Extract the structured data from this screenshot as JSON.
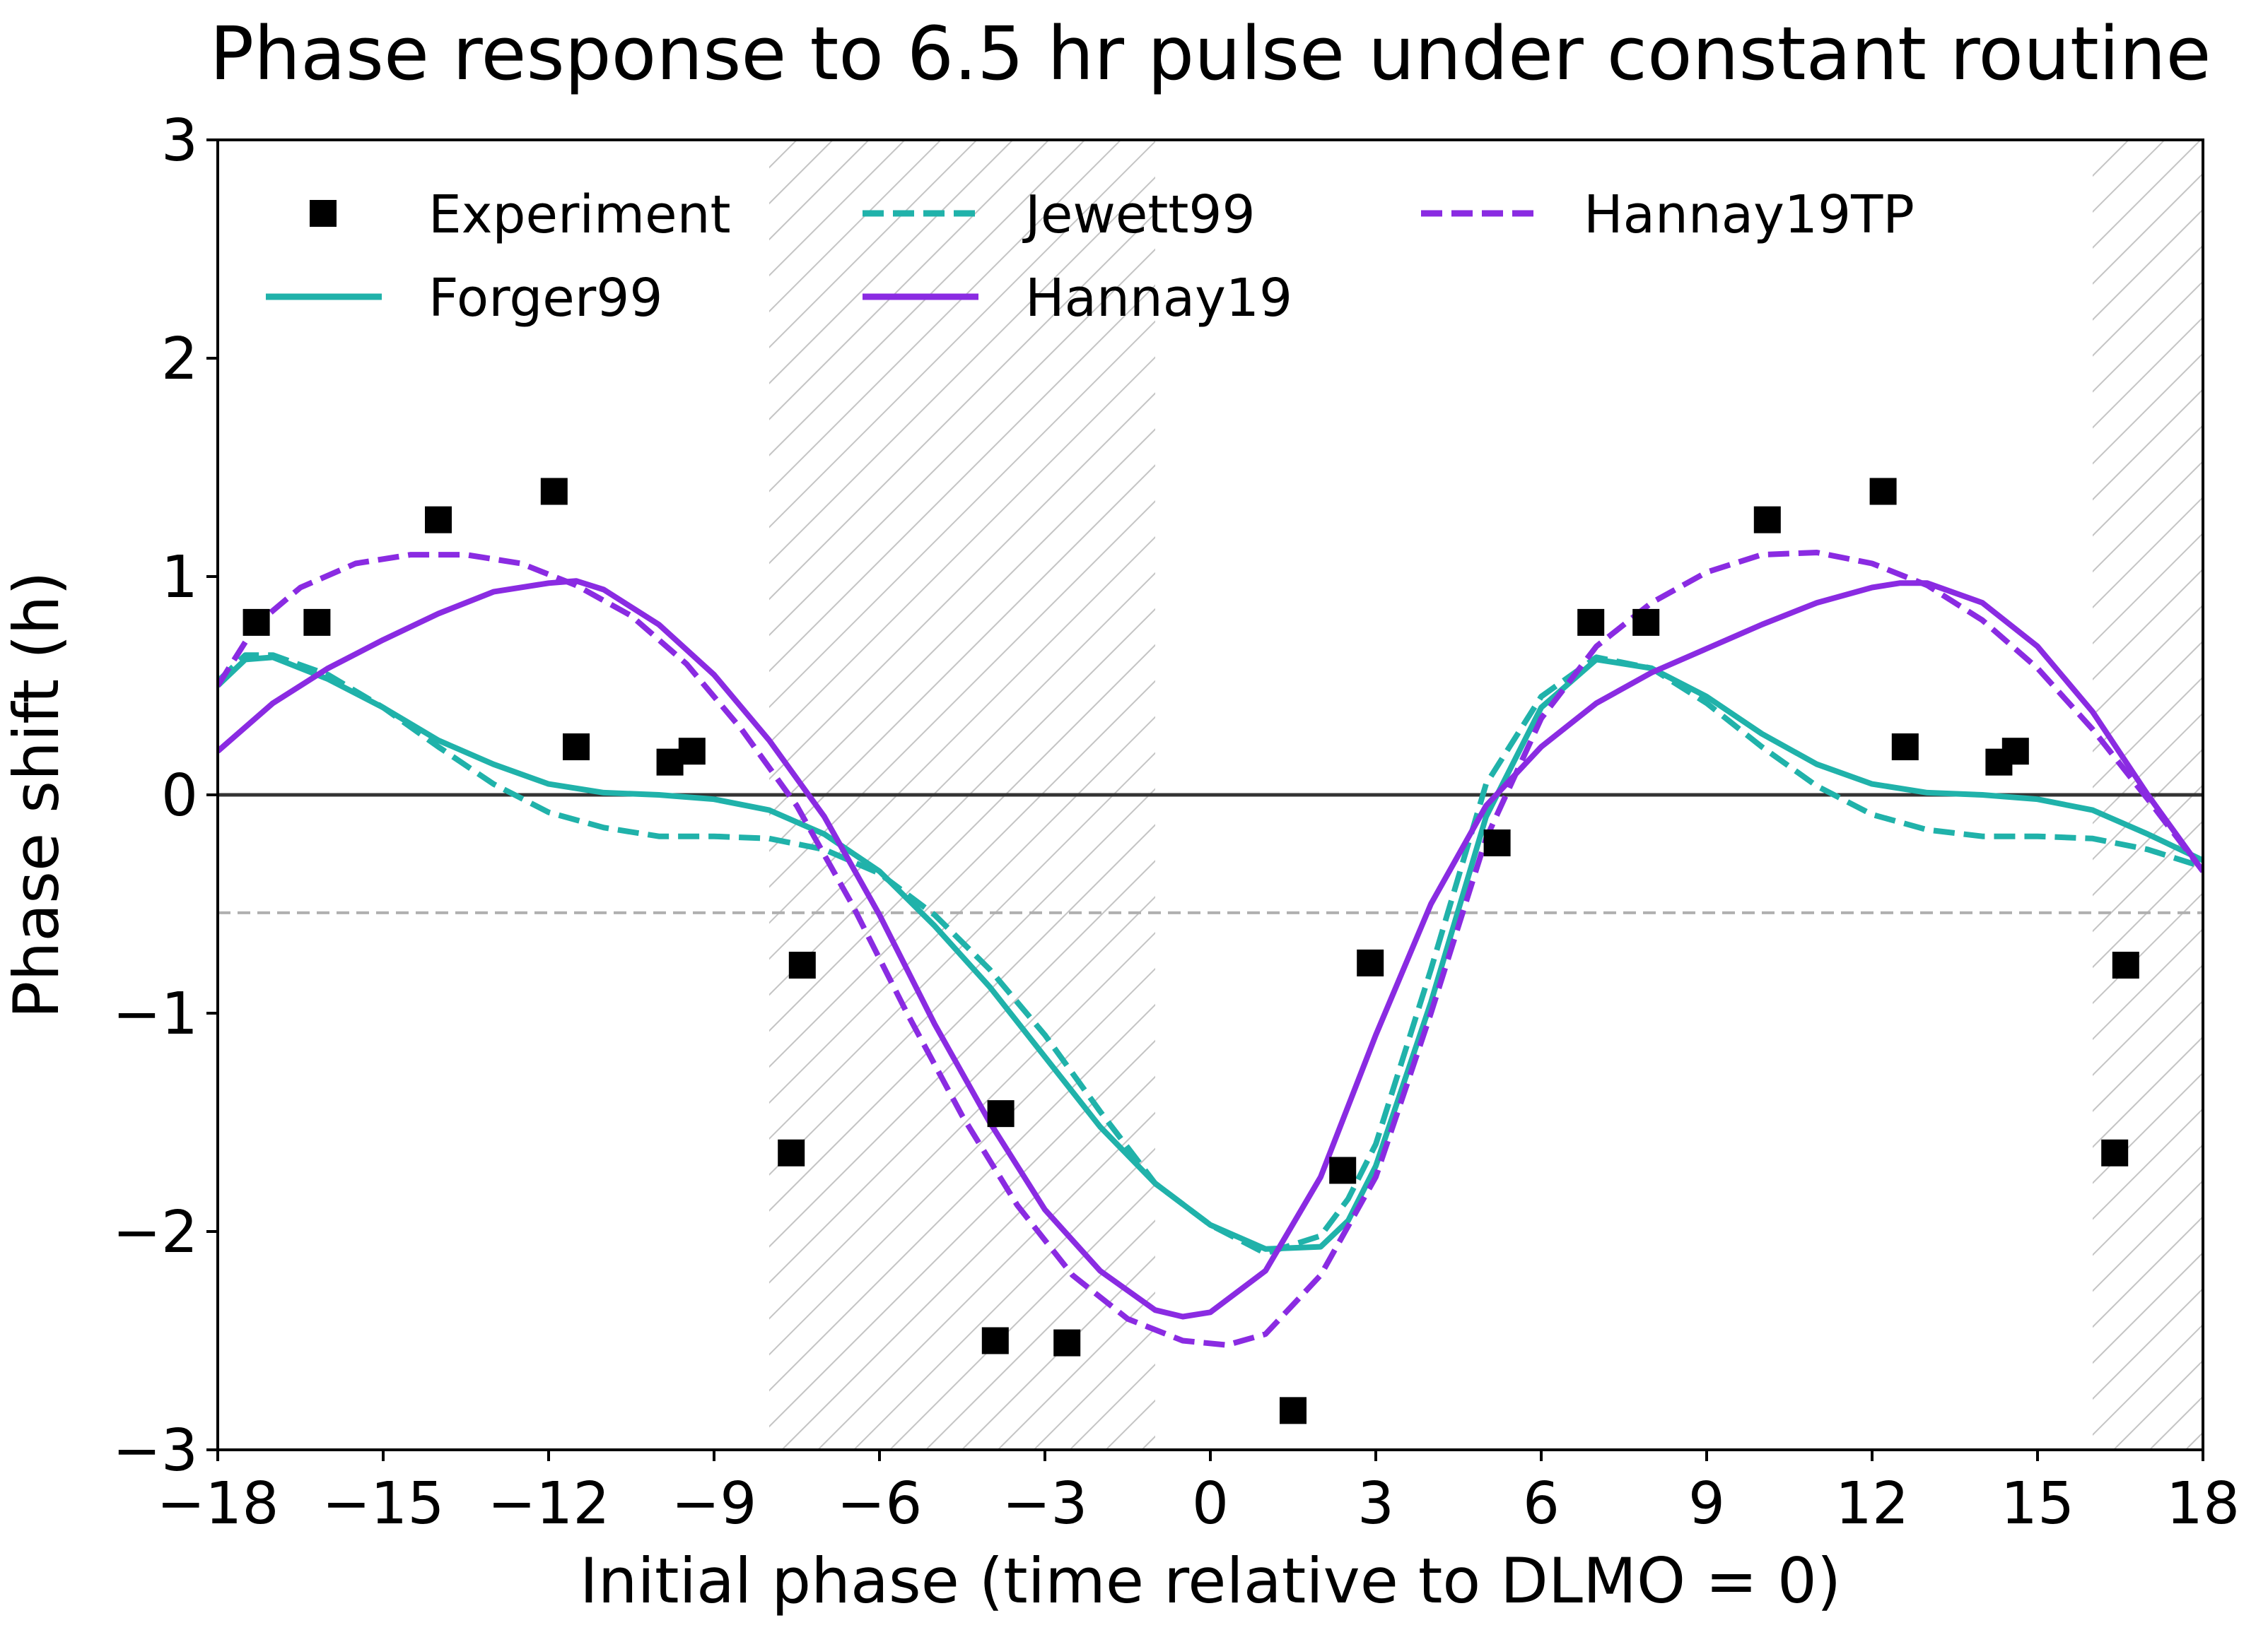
{
  "chart_data": {
    "type": "line",
    "title": "Phase response to 6.5 hr pulse under constant routine",
    "xlabel": "Initial phase (time relative to DLMO = 0)",
    "ylabel": "Phase shift (h)",
    "xlim": [
      -18,
      18
    ],
    "ylim": [
      -3,
      3
    ],
    "xticks": [
      -18,
      -15,
      -12,
      -9,
      -6,
      -3,
      0,
      3,
      6,
      9,
      12,
      15,
      18
    ],
    "yticks": [
      -3,
      -2,
      -1,
      0,
      1,
      2,
      3
    ],
    "xtick_labels": [
      "−18",
      "−15",
      "−12",
      "−9",
      "−6",
      "−3",
      "0",
      "3",
      "6",
      "9",
      "12",
      "15",
      "18"
    ],
    "ytick_labels": [
      "−3",
      "−2",
      "−1",
      "0",
      "1",
      "2",
      "3"
    ],
    "grid": false,
    "legend_placement": "top",
    "hatched_regions": [
      [
        -8,
        -1
      ],
      [
        16,
        18
      ]
    ],
    "reference_lines": [
      {
        "y": 0,
        "style": "solid",
        "color": "#333333"
      },
      {
        "y": -0.54,
        "style": "dashed",
        "color": "#b0b0b0"
      }
    ],
    "series": [
      {
        "name": "Experiment",
        "kind": "scatter",
        "color": "#000000",
        "x": [
          -17.3,
          -16.2,
          -14.0,
          -11.9,
          -11.5,
          -9.8,
          -9.4,
          -7.6,
          -7.4,
          -3.9,
          -3.8,
          -2.6,
          1.5,
          2.4,
          2.9,
          5.2,
          6.9,
          7.9,
          10.1,
          12.2,
          12.6,
          14.3,
          14.6,
          16.4,
          16.6
        ],
        "y": [
          0.79,
          0.79,
          1.26,
          1.39,
          0.22,
          0.15,
          0.2,
          -1.64,
          -0.78,
          -2.5,
          -1.46,
          -2.51,
          -2.82,
          -1.72,
          -0.77,
          -0.22,
          0.79,
          0.79,
          1.26,
          1.39,
          0.22,
          0.15,
          0.2,
          -1.64,
          -0.78
        ]
      },
      {
        "name": "Forger99",
        "kind": "line",
        "dash": "solid",
        "color": "#20b2aa",
        "x": [
          -18,
          -17.5,
          -17,
          -16,
          -15,
          -14,
          -13,
          -12,
          -11,
          -10,
          -9,
          -8,
          -7,
          -6,
          -5,
          -4,
          -3,
          -2,
          -1,
          0,
          1,
          2,
          2.5,
          3,
          4,
          5,
          6,
          7,
          8,
          9,
          10,
          11,
          12,
          13,
          14,
          15,
          16,
          17,
          18
        ],
        "y": [
          0.5,
          0.62,
          0.63,
          0.53,
          0.4,
          0.25,
          0.14,
          0.05,
          0.01,
          0.0,
          -0.02,
          -0.07,
          -0.18,
          -0.35,
          -0.6,
          -0.88,
          -1.2,
          -1.52,
          -1.78,
          -1.97,
          -2.08,
          -2.07,
          -1.95,
          -1.7,
          -0.95,
          -0.1,
          0.4,
          0.62,
          0.58,
          0.45,
          0.28,
          0.14,
          0.05,
          0.01,
          0.0,
          -0.02,
          -0.07,
          -0.18,
          -0.3
        ]
      },
      {
        "name": "Jewett99",
        "kind": "line",
        "dash": "dashed",
        "color": "#20b2aa",
        "x": [
          -18,
          -17.5,
          -17,
          -16,
          -15,
          -14,
          -13,
          -12,
          -11,
          -10,
          -9,
          -8,
          -7,
          -6,
          -5,
          -4,
          -3,
          -2,
          -1,
          0,
          1,
          2,
          2.5,
          3,
          4,
          5,
          6,
          7,
          8,
          9,
          10,
          11,
          12,
          13,
          14,
          15,
          16,
          17,
          18
        ],
        "y": [
          0.52,
          0.64,
          0.64,
          0.55,
          0.4,
          0.22,
          0.05,
          -0.08,
          -0.15,
          -0.19,
          -0.19,
          -0.2,
          -0.25,
          -0.36,
          -0.55,
          -0.8,
          -1.1,
          -1.45,
          -1.78,
          -1.97,
          -2.1,
          -2.02,
          -1.85,
          -1.6,
          -0.8,
          0.05,
          0.45,
          0.63,
          0.58,
          0.42,
          0.22,
          0.04,
          -0.09,
          -0.16,
          -0.19,
          -0.19,
          -0.2,
          -0.25,
          -0.33
        ]
      },
      {
        "name": "Hannay19",
        "kind": "line",
        "dash": "solid",
        "color": "#8a2be2",
        "x": [
          -18,
          -17,
          -16,
          -15,
          -14,
          -13,
          -12,
          -11.5,
          -11,
          -10,
          -9,
          -8,
          -7,
          -6,
          -5,
          -4,
          -3,
          -2,
          -1,
          -0.5,
          0,
          1,
          2,
          3,
          4,
          5,
          6,
          7,
          8,
          9,
          10,
          11,
          12,
          12.5,
          13,
          14,
          15,
          16,
          17,
          18
        ],
        "y": [
          0.2,
          0.42,
          0.58,
          0.71,
          0.83,
          0.93,
          0.97,
          0.98,
          0.94,
          0.78,
          0.55,
          0.25,
          -0.1,
          -0.55,
          -1.05,
          -1.5,
          -1.9,
          -2.18,
          -2.36,
          -2.39,
          -2.37,
          -2.18,
          -1.75,
          -1.1,
          -0.5,
          -0.05,
          0.22,
          0.42,
          0.56,
          0.67,
          0.78,
          0.88,
          0.95,
          0.97,
          0.97,
          0.88,
          0.68,
          0.38,
          0.0,
          -0.35
        ]
      },
      {
        "name": "Hannay19TP",
        "kind": "line",
        "dash": "dashed",
        "color": "#8a2be2",
        "x": [
          -18,
          -17.3,
          -16.5,
          -15.5,
          -14.5,
          -13.5,
          -12.5,
          -11.5,
          -10.5,
          -9.5,
          -8.5,
          -7.5,
          -6.5,
          -5.5,
          -4.5,
          -3.5,
          -2.5,
          -1.5,
          -0.5,
          0.3,
          1,
          2,
          3,
          4,
          4.5,
          5,
          6,
          7,
          8,
          9,
          10,
          11,
          12,
          13,
          14,
          15,
          16,
          17,
          18
        ],
        "y": [
          0.5,
          0.78,
          0.95,
          1.06,
          1.1,
          1.1,
          1.06,
          0.96,
          0.82,
          0.6,
          0.3,
          -0.05,
          -0.5,
          -1.0,
          -1.47,
          -1.88,
          -2.2,
          -2.4,
          -2.5,
          -2.52,
          -2.47,
          -2.2,
          -1.75,
          -1.0,
          -0.6,
          -0.2,
          0.35,
          0.68,
          0.88,
          1.02,
          1.1,
          1.11,
          1.06,
          0.96,
          0.8,
          0.58,
          0.3,
          -0.02,
          -0.35
        ]
      }
    ]
  }
}
